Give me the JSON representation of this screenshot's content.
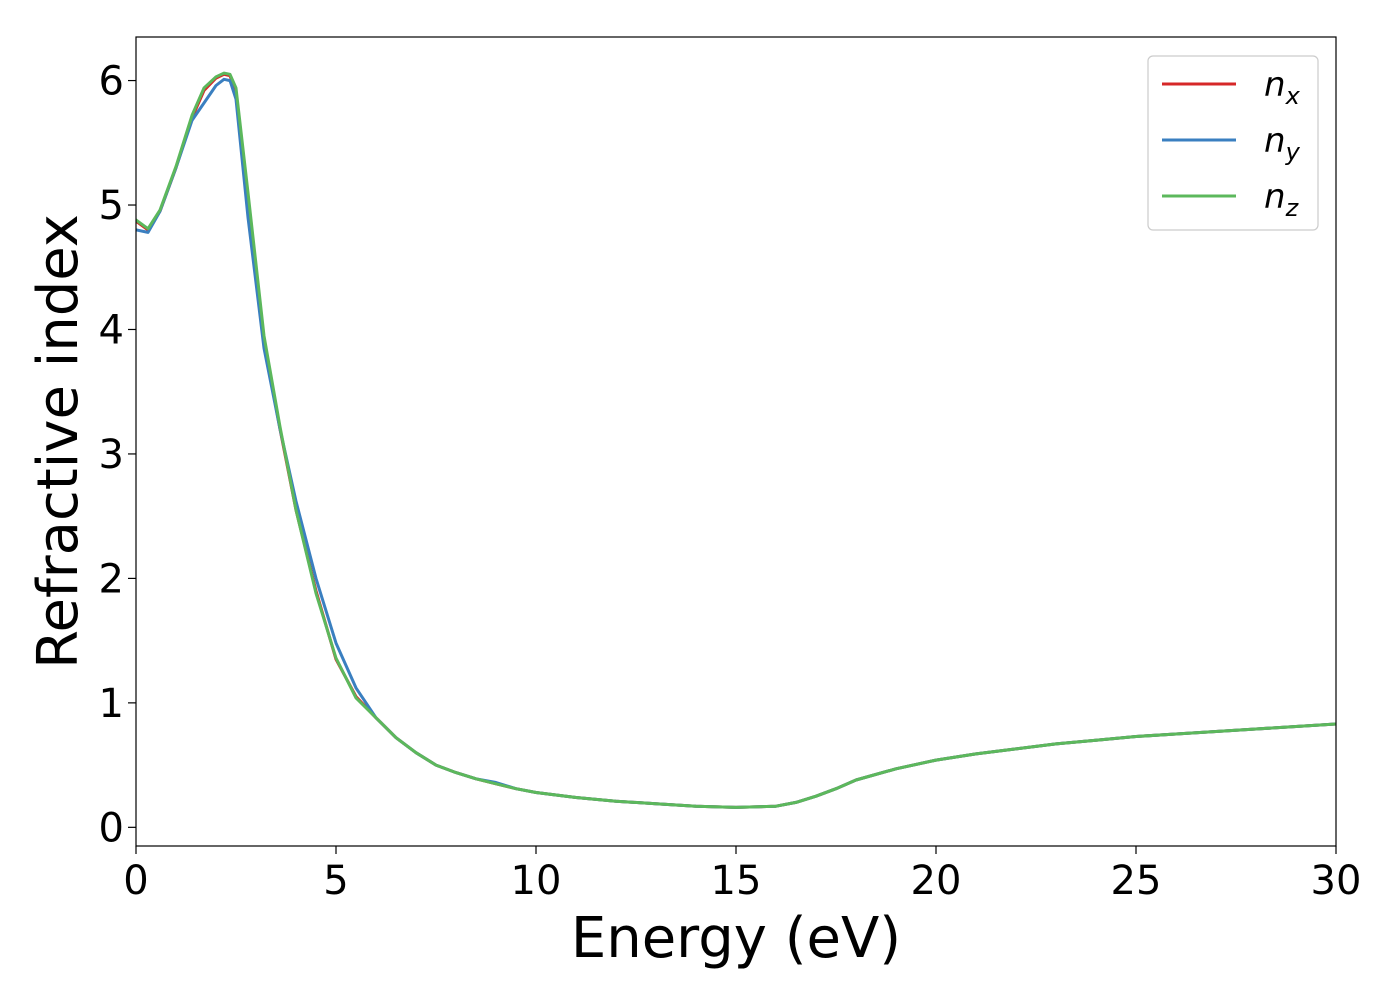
{
  "chart_data": {
    "type": "line",
    "xlabel": "Energy (eV)",
    "ylabel": "Refractive index",
    "xlim": [
      0,
      30
    ],
    "ylim": [
      -0.15,
      6.35
    ],
    "xticks": [
      0,
      5,
      10,
      15,
      20,
      25,
      30
    ],
    "xtick_labels": [
      "0",
      "5",
      "10",
      "15",
      "20",
      "25",
      "30"
    ],
    "yticks": [
      0,
      1,
      2,
      3,
      4,
      5,
      6
    ],
    "ytick_labels": [
      "0",
      "1",
      "2",
      "3",
      "4",
      "5",
      "6"
    ],
    "grid": false,
    "legend_position": "top-right",
    "series": [
      {
        "name": "n",
        "subscript": "x",
        "color": "#d62728",
        "x": [
          0,
          0.3,
          0.6,
          1.0,
          1.4,
          1.7,
          2.0,
          2.2,
          2.35,
          2.5,
          2.8,
          3.2,
          3.6,
          4.0,
          4.5,
          5.0,
          5.5,
          6.0,
          6.5,
          7.0,
          7.5,
          8.0,
          8.5,
          9.0,
          9.5,
          10,
          11,
          12,
          13,
          14,
          15,
          16,
          16.5,
          17,
          17.5,
          18,
          19,
          20,
          21,
          22,
          23,
          24,
          25,
          26,
          27,
          28,
          29,
          30
        ],
        "y": [
          4.87,
          4.8,
          4.95,
          5.3,
          5.7,
          5.92,
          6.02,
          6.05,
          6.04,
          5.9,
          5.0,
          3.9,
          3.2,
          2.55,
          1.9,
          1.35,
          1.05,
          0.88,
          0.72,
          0.6,
          0.5,
          0.44,
          0.39,
          0.35,
          0.31,
          0.28,
          0.24,
          0.21,
          0.19,
          0.17,
          0.16,
          0.17,
          0.2,
          0.25,
          0.31,
          0.38,
          0.47,
          0.54,
          0.59,
          0.63,
          0.67,
          0.7,
          0.73,
          0.75,
          0.77,
          0.79,
          0.81,
          0.83
        ]
      },
      {
        "name": "n",
        "subscript": "y",
        "color": "#3a7fc0",
        "x": [
          0,
          0.3,
          0.6,
          1.0,
          1.4,
          1.7,
          2.0,
          2.2,
          2.35,
          2.5,
          2.8,
          3.2,
          3.6,
          4.0,
          4.5,
          5.0,
          5.5,
          6.0,
          6.5,
          7.0,
          7.5,
          8.0,
          8.5,
          9.0,
          9.5,
          10,
          11,
          12,
          13,
          14,
          15,
          16,
          16.5,
          17,
          17.5,
          18,
          19,
          20,
          21,
          22,
          23,
          24,
          25,
          26,
          27,
          28,
          29,
          30
        ],
        "y": [
          4.8,
          4.78,
          4.95,
          5.3,
          5.68,
          5.82,
          5.96,
          6.01,
          6.0,
          5.85,
          4.9,
          3.85,
          3.2,
          2.62,
          2.0,
          1.48,
          1.12,
          0.88,
          0.72,
          0.6,
          0.5,
          0.44,
          0.39,
          0.36,
          0.31,
          0.28,
          0.24,
          0.21,
          0.19,
          0.17,
          0.16,
          0.17,
          0.2,
          0.25,
          0.31,
          0.38,
          0.47,
          0.54,
          0.59,
          0.63,
          0.67,
          0.7,
          0.73,
          0.75,
          0.77,
          0.79,
          0.81,
          0.83
        ]
      },
      {
        "name": "n",
        "subscript": "z",
        "color": "#5cb85c",
        "x": [
          0,
          0.3,
          0.6,
          1.0,
          1.4,
          1.7,
          2.0,
          2.2,
          2.35,
          2.5,
          2.8,
          3.2,
          3.6,
          4.0,
          4.5,
          5.0,
          5.5,
          6.0,
          6.5,
          7.0,
          7.5,
          8.0,
          8.5,
          9.0,
          9.5,
          10,
          11,
          12,
          13,
          14,
          15,
          16,
          16.5,
          17,
          17.5,
          18,
          19,
          20,
          21,
          22,
          23,
          24,
          25,
          26,
          27,
          28,
          29,
          30
        ],
        "y": [
          4.88,
          4.81,
          4.96,
          5.31,
          5.72,
          5.94,
          6.03,
          6.06,
          6.05,
          5.94,
          5.1,
          3.95,
          3.22,
          2.55,
          1.88,
          1.36,
          1.04,
          0.88,
          0.72,
          0.6,
          0.5,
          0.44,
          0.39,
          0.35,
          0.31,
          0.28,
          0.24,
          0.21,
          0.19,
          0.17,
          0.16,
          0.17,
          0.2,
          0.25,
          0.31,
          0.38,
          0.47,
          0.54,
          0.59,
          0.63,
          0.67,
          0.7,
          0.73,
          0.75,
          0.77,
          0.79,
          0.81,
          0.83
        ]
      }
    ]
  }
}
